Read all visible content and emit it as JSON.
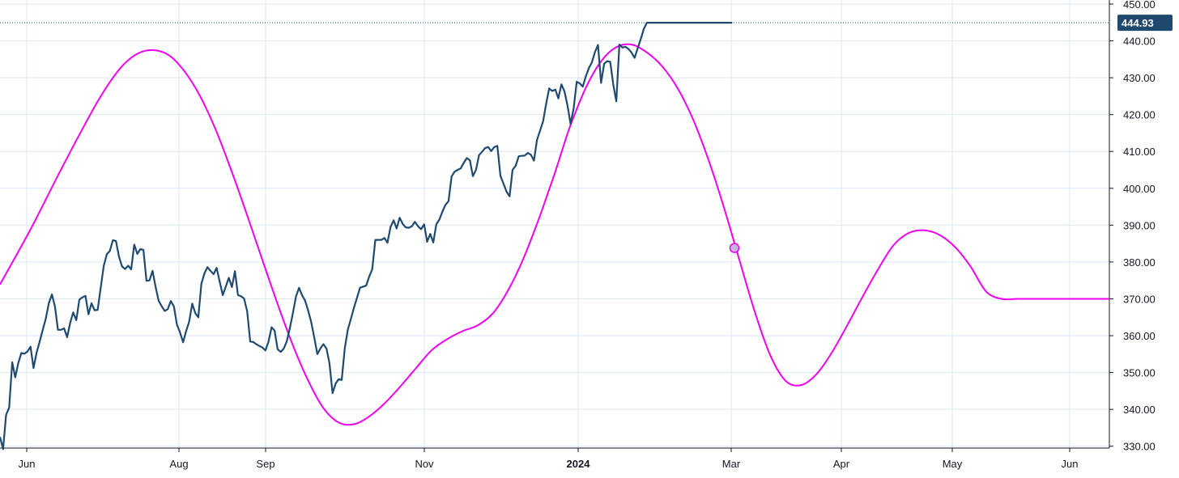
{
  "chart_data": {
    "type": "line",
    "y_ticks": [
      "330.00",
      "340.00",
      "350.00",
      "360.00",
      "370.00",
      "380.00",
      "390.00",
      "400.00",
      "410.00",
      "420.00",
      "430.00",
      "440.00",
      "450.00"
    ],
    "x_ticks": [
      {
        "label": "Jun",
        "bold": false
      },
      {
        "label": "Aug",
        "bold": false
      },
      {
        "label": "Sep",
        "bold": false
      },
      {
        "label": "Nov",
        "bold": false
      },
      {
        "label": "2024",
        "bold": true
      },
      {
        "label": "Mar",
        "bold": false
      },
      {
        "label": "Apr",
        "bold": false
      },
      {
        "label": "May",
        "bold": false
      },
      {
        "label": "Jun",
        "bold": false
      }
    ],
    "ylim": [
      329.5,
      450
    ],
    "grid": true,
    "last_price": "444.93",
    "colors": {
      "price": "#1f4a70",
      "cycle": "#ee00ee",
      "tag": "#1f4a70",
      "grid": "#dde6f0",
      "marker_fill": "#c9b5e0"
    },
    "series": [
      {
        "role": "price",
        "x": [
          0,
          2,
          4,
          6,
          8,
          10,
          12,
          14,
          16,
          18,
          20,
          22,
          24,
          26,
          28,
          30,
          32,
          34,
          36,
          38,
          40,
          42,
          44,
          46,
          48,
          50,
          52,
          54,
          56,
          58,
          60,
          62,
          64,
          66,
          68,
          70,
          72,
          74,
          76,
          78,
          80,
          82,
          84,
          86,
          88,
          90,
          92,
          94,
          96,
          98,
          100,
          102,
          104,
          106,
          108,
          110,
          112,
          114,
          116,
          118,
          120,
          122,
          124,
          126,
          128,
          130,
          132,
          134,
          136,
          138,
          140,
          142,
          144,
          146,
          148,
          150,
          152,
          154,
          156,
          158,
          160,
          162,
          164,
          166,
          168,
          170,
          172,
          174,
          176,
          178,
          180,
          182,
          184,
          186,
          188,
          190,
          192,
          194,
          196,
          198,
          200,
          202,
          204,
          206,
          208,
          210,
          212,
          214,
          216,
          218,
          220,
          222,
          224,
          226,
          228,
          230,
          232,
          234,
          236,
          238,
          240,
          242,
          244
        ],
        "y": [
          332.5,
          329.2,
          338.5,
          340.5,
          352.8,
          348.7,
          352.6,
          355.3,
          355.1,
          355.7,
          357.0,
          351.2,
          355.4,
          358.4,
          361.6,
          364.6,
          368.8,
          371.2,
          368.0,
          361.6,
          361.6,
          362.0,
          359.6,
          363.5,
          366.3,
          364.2,
          369.8,
          370.4,
          370.8,
          365.8,
          368.8,
          366.9,
          367.0,
          372.9,
          378.9,
          382.1,
          383.0,
          385.9,
          385.7,
          381.4,
          378.8,
          378.1,
          379.0,
          378.0,
          384.7,
          382.2,
          383.5,
          383.3,
          374.9,
          375.0,
          377.6,
          373.2,
          369.5,
          368.0,
          366.7,
          367.2,
          369.4,
          367.9,
          363.0,
          360.9,
          358.2,
          361.2,
          363.8,
          368.7,
          366.1,
          365.0,
          374.1,
          376.9,
          378.6,
          377.6,
          376.7,
          378.4,
          374.7,
          371.0,
          373.3,
          375.7,
          373.2,
          377.5,
          371.0,
          370.7,
          370.1,
          366.7,
          358.4,
          358.3,
          357.7,
          357.2,
          356.8,
          356.0,
          358.4,
          362.3,
          361.4,
          356.3,
          355.6,
          356.5,
          358.5,
          362.1,
          366.1,
          370.6,
          373.0,
          371.0,
          369.5,
          366.8,
          363.7,
          359.5,
          355.0,
          356.5,
          357.7,
          356.5,
          352.5,
          344.4,
          347.0,
          348.2,
          348.0,
          356.6,
          361.7,
          364.5,
          367.6,
          370.3,
          373.0,
          373.3,
          373.6,
          376.0,
          378.0
        ],
        "x_cont": [
          246,
          248,
          250,
          252,
          254,
          256,
          258,
          260,
          262,
          264,
          266,
          268,
          270,
          272,
          274,
          276,
          278,
          280,
          282,
          284,
          286,
          288,
          290,
          292,
          294,
          296,
          298,
          300,
          302,
          304,
          306,
          308,
          310,
          312,
          314,
          316,
          318,
          320,
          322,
          324,
          326,
          328,
          330,
          332,
          334,
          336,
          338,
          340,
          342,
          344,
          346,
          348,
          350,
          352,
          354,
          356,
          358,
          360,
          362,
          364,
          366,
          368,
          370,
          372,
          374,
          376,
          378,
          380,
          382,
          384,
          386,
          388,
          390,
          392,
          394,
          396,
          398,
          400,
          402,
          404,
          406,
          408,
          410,
          412,
          414,
          416,
          418,
          420,
          422,
          424,
          426,
          428,
          430,
          432,
          434,
          436,
          438,
          440,
          442,
          444,
          446,
          448,
          450,
          452,
          454,
          456,
          458,
          460,
          462,
          464,
          466,
          468,
          470,
          472,
          474,
          476,
          478,
          480
        ],
        "y_cont": [
          386.0,
          386.0,
          386.0,
          386.5,
          385.2,
          389.5,
          391.3,
          389.1,
          392.0,
          390.3,
          389.4,
          389.3,
          389.7,
          390.9,
          389.7,
          388.9,
          390.2,
          385.5,
          387.6,
          385.3,
          390.2,
          391.5,
          393.7,
          395.5,
          396.5,
          403.2,
          404.5,
          405.0,
          405.4,
          406.9,
          408.2,
          407.6,
          403.3,
          405.0,
          409.0,
          409.9,
          410.9,
          411.2,
          410.1,
          411.2,
          411.5,
          403.4,
          401.3,
          399.1,
          397.8,
          405.0,
          406.1,
          408.7,
          408.8,
          408.9,
          409.6,
          409.1,
          407.5,
          413.2,
          415.6,
          418.2,
          423.0,
          427.1,
          426.4,
          426.8,
          424.4,
          428.2,
          426.3,
          422.5,
          417.5,
          421.6,
          428.9,
          428.5,
          427.6,
          430.4,
          432.6,
          434.2,
          437.0,
          438.9,
          428.6,
          433.8,
          434.5,
          434.3,
          428.1,
          423.6,
          439.0,
          438.2,
          438.4,
          437.8,
          436.8,
          435.4,
          438.0,
          440.5,
          443.2,
          444.93,
          444.93,
          444.93,
          444.93,
          444.93,
          444.93,
          444.93,
          444.93,
          444.93,
          444.93,
          444.93,
          444.93,
          444.93,
          444.93,
          444.93,
          444.93,
          444.93,
          444.93,
          444.93,
          444.93,
          444.93,
          444.93,
          444.93,
          444.93,
          444.93,
          444.93,
          444.93,
          444.93,
          444.93
        ]
      },
      {
        "role": "cycle",
        "x": [
          0,
          20,
          40,
          60,
          70,
          80,
          90,
          100,
          110,
          120,
          130,
          140,
          150,
          160,
          170,
          180,
          190,
          200,
          210,
          220,
          230,
          240,
          250,
          260,
          270,
          280,
          290,
          300,
          310,
          320,
          330,
          340,
          350,
          355,
          360,
          365,
          370,
          380,
          390,
          400,
          410,
          420,
          430,
          440,
          450,
          460,
          470,
          480,
          490,
          500,
          510,
          520,
          530,
          540,
          550,
          560,
          570,
          580,
          590,
          600,
          610,
          620,
          630,
          640,
          650,
          660,
          670,
          680,
          690,
          700,
          710,
          720
        ],
        "y": [
          373.9,
          389.0,
          405.4,
          421.1,
          428.0,
          433.5,
          436.7,
          437.5,
          436.0,
          431.6,
          424.9,
          415.9,
          405.0,
          393.2,
          380.9,
          368.8,
          357.5,
          347.8,
          340.3,
          336.4,
          336.0,
          338.2,
          341.8,
          346.3,
          351.2,
          356.0,
          359.0,
          361.2,
          362.8,
          366.1,
          372.5,
          381.2,
          392.0,
          398.0,
          404.0,
          410.5,
          416.8,
          427.1,
          434.4,
          438.3,
          439.0,
          436.8,
          433.0,
          427.0,
          418.5,
          407.5,
          394.6,
          380.4,
          366.3,
          354.6,
          347.7,
          346.6,
          349.6,
          355.5,
          362.9,
          370.7,
          378.1,
          384.6,
          387.9,
          388.6,
          387.3,
          384.0,
          378.7,
          372.0,
          370.0,
          370.0,
          370.0,
          370.0,
          370.0,
          370.0,
          370.0,
          370.0
        ]
      }
    ]
  }
}
